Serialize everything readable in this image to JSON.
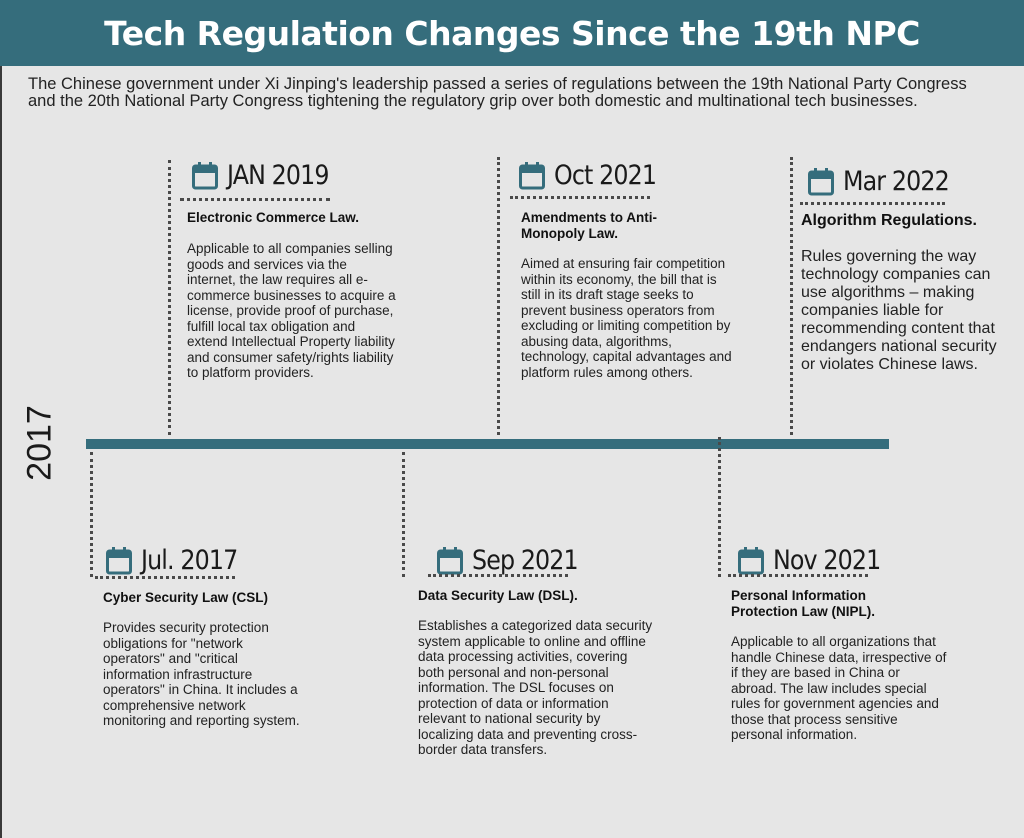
{
  "title": "Tech Regulation Changes Since the 19th NPC",
  "intro": "The Chinese government under Xi Jinping's leadership passed a series of regulations between the 19th National Party Congress and the 20th National Party Congress tightening the regulatory grip over both domestic and multinational tech businesses.",
  "timeline": {
    "start_label": "2017",
    "accent_color": "#356d7c"
  },
  "events": {
    "jan2019": {
      "icon": "calendar-icon",
      "date": "JAN 2019",
      "law": "Electronic Commerce Law.",
      "description": "Applicable to all companies selling goods and services via the internet, the law requires all e-commerce businesses to acquire a license, provide proof of purchase, fulfill local tax obligation and extend Intellectual Property liability and consumer safety/rights liability to platform providers."
    },
    "oct2021": {
      "icon": "calendar-icon",
      "date": "Oct 2021",
      "law": "Amendments to Anti-Monopoly Law.",
      "description": "Aimed at ensuring fair competition within its economy, the bill that is still in its draft stage seeks to prevent business operators from excluding or limiting competition by abusing data, algorithms, technology, capital advantages and platform rules among others."
    },
    "mar2022": {
      "icon": "calendar-icon",
      "date": "Mar 2022",
      "law": "Algorithm Regulations.",
      "description": "Rules governing the way technology companies can use algorithms – making companies liable for recommending content that endangers national security or violates Chinese laws."
    },
    "jul2017": {
      "icon": "calendar-icon",
      "date": "Jul. 2017",
      "law": "Cyber Security Law (CSL)",
      "description": "Provides security protection obligations for \"network operators\" and \"critical information infrastructure operators\" in China. It includes a comprehensive network monitoring and reporting system."
    },
    "sep2021": {
      "icon": "calendar-icon",
      "date": "Sep 2021",
      "law": "Data Security Law (DSL).",
      "description": "Establishes a categorized data security system applicable to online and offline data processing activities, covering both personal and non-personal information. The DSL focuses on protection of data or information relevant to national security by localizing data and preventing cross-border data transfers."
    },
    "nov2021": {
      "icon": "calendar-icon",
      "date": "Nov 2021",
      "law": "Personal Information Protection Law (NIPL).",
      "description": "Applicable to all organizations that handle Chinese data, irrespective of if they are based in China or abroad. The law includes special rules for government agencies and those that process sensitive personal information."
    }
  }
}
